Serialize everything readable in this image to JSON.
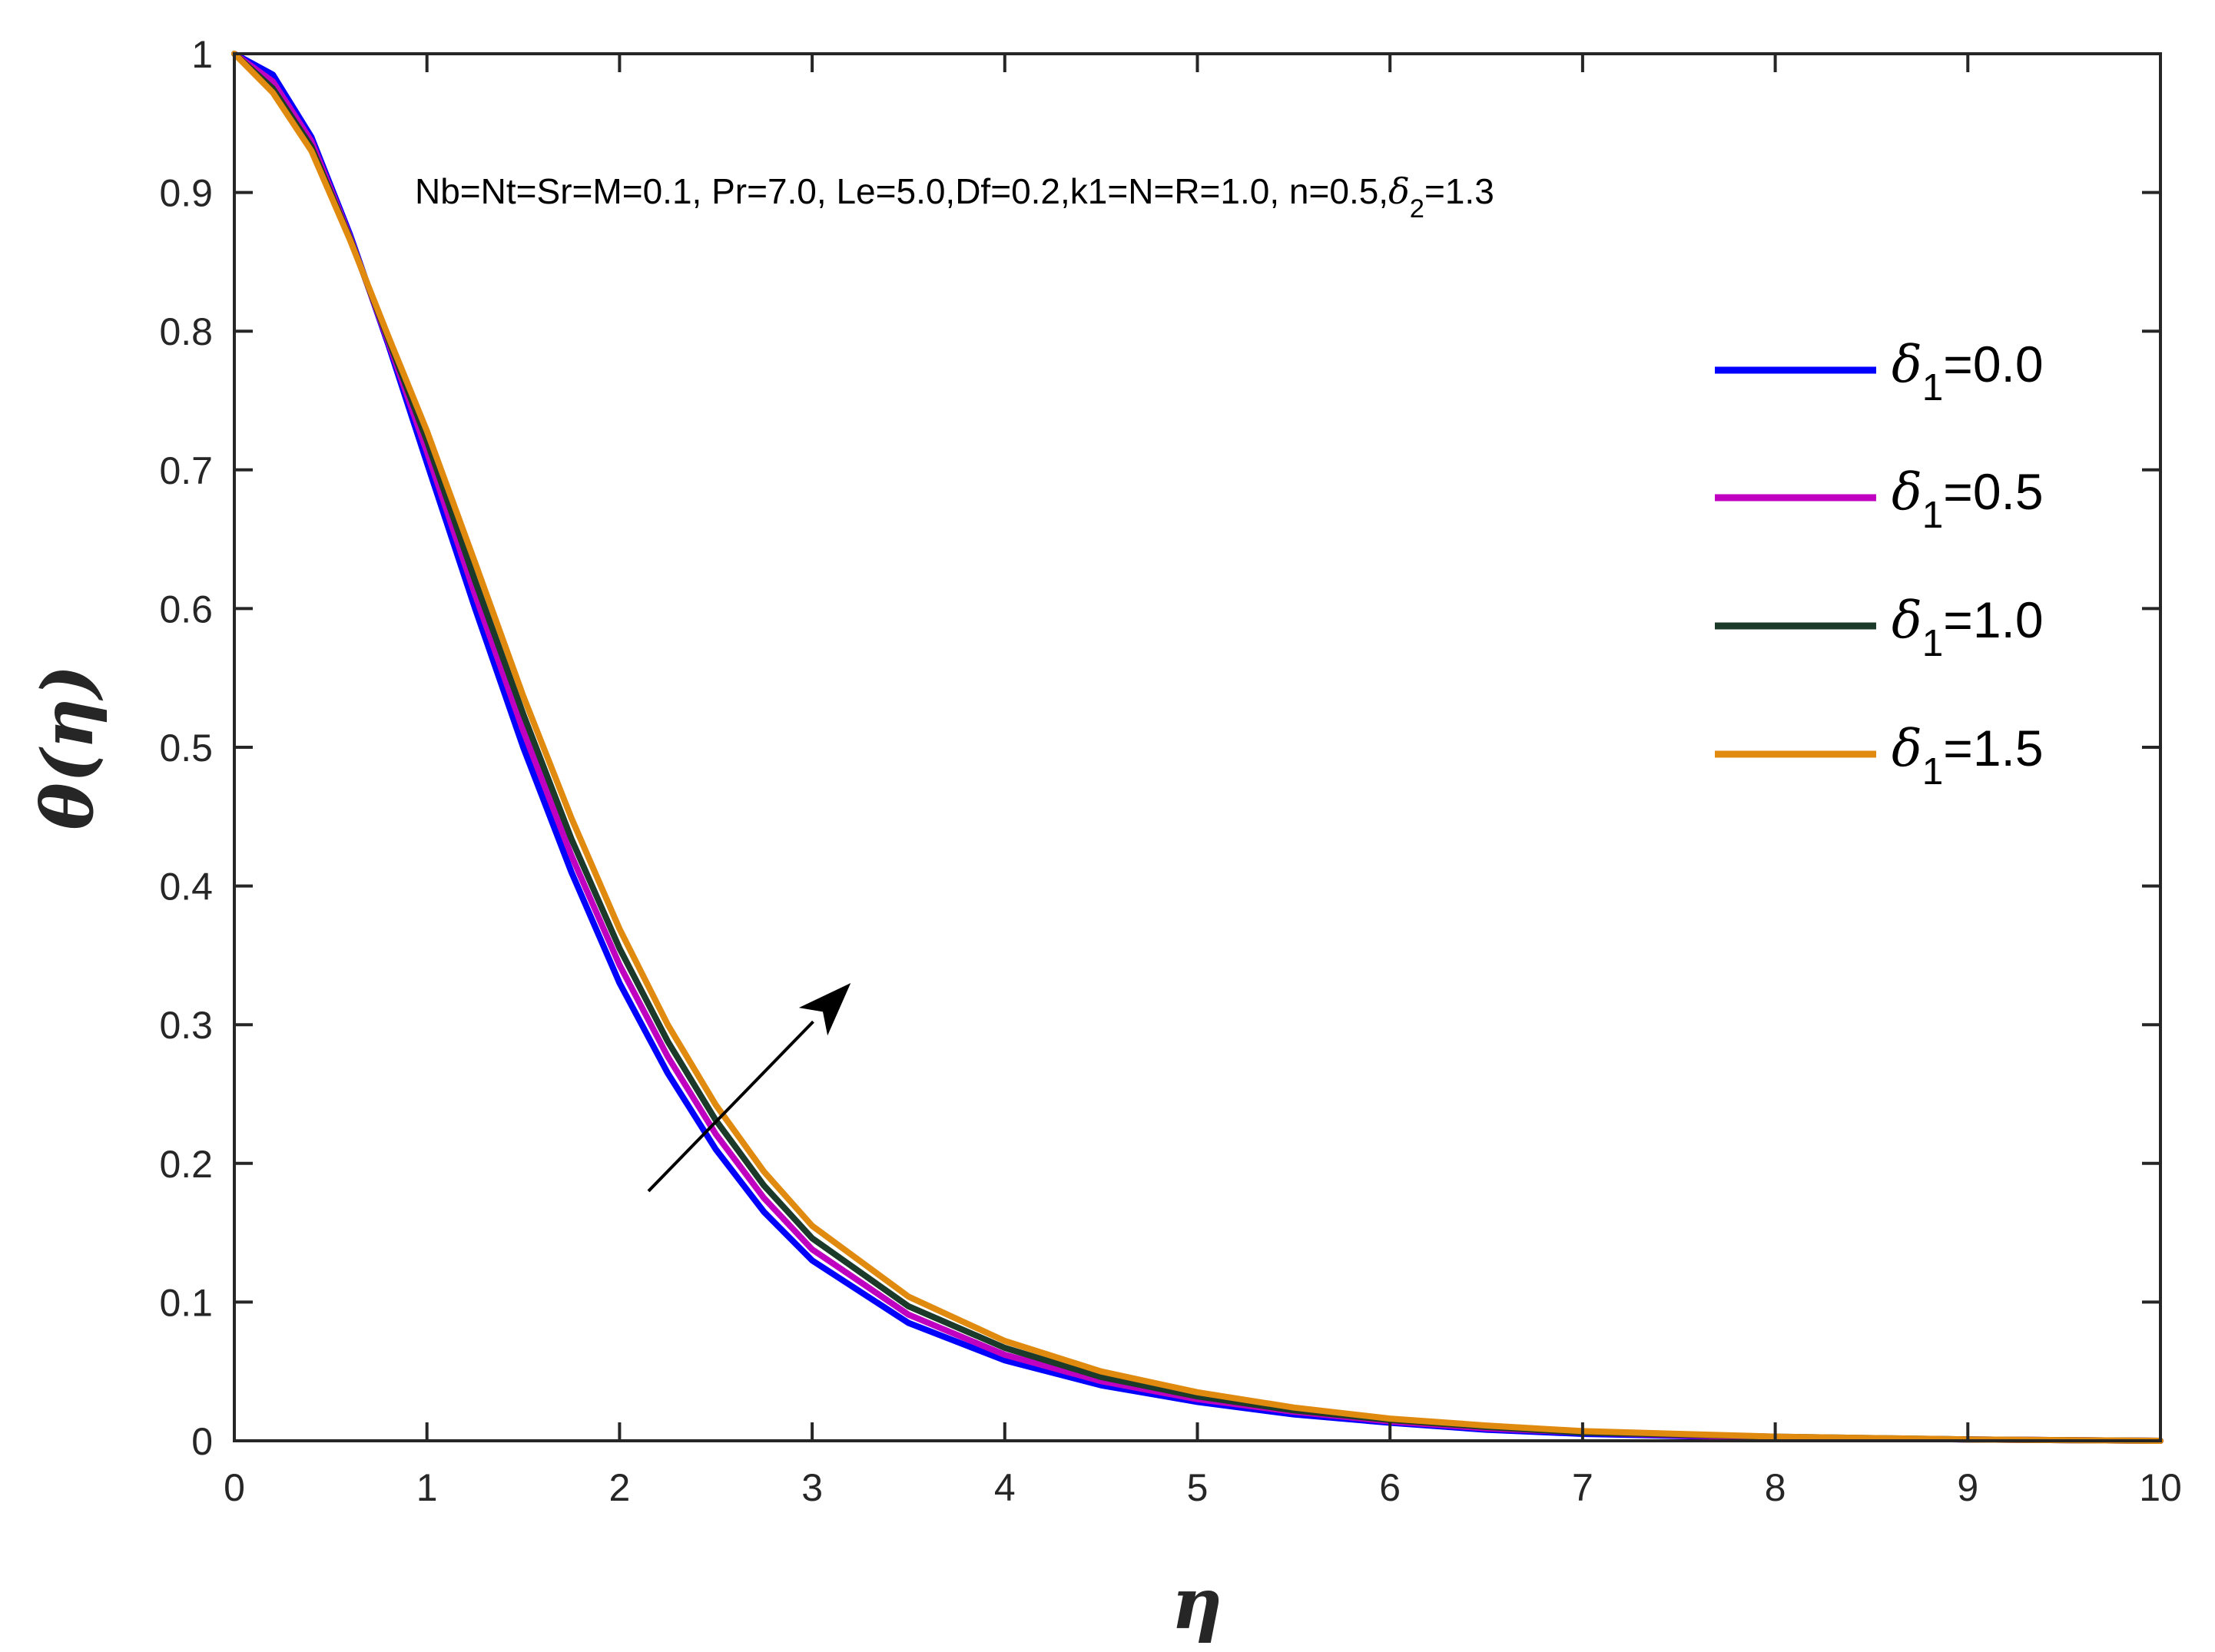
{
  "chart_data": {
    "type": "line",
    "xlabel": "η",
    "ylabel": "θ(η)",
    "xlim": [
      0,
      10
    ],
    "ylim": [
      0,
      1
    ],
    "xticks": [
      0,
      1,
      2,
      3,
      4,
      5,
      6,
      7,
      8,
      9,
      10
    ],
    "yticks": [
      0,
      0.1,
      0.2,
      0.3,
      0.4,
      0.5,
      0.6,
      0.7,
      0.8,
      0.9,
      1
    ],
    "xtick_labels": [
      "0",
      "1",
      "2",
      "3",
      "4",
      "5",
      "6",
      "7",
      "8",
      "9",
      "10"
    ],
    "ytick_labels": [
      "0",
      "0.1",
      "0.2",
      "0.3",
      "0.4",
      "0.5",
      "0.6",
      "0.7",
      "0.8",
      "0.9",
      "1"
    ],
    "grid": false,
    "legend_position": "top-right",
    "annotation": {
      "main": "Nb=Nt=Sr=M=0.1, Pr=7.0, Le=5.0,Df=0.2,k1=N=R=1.0, n=0.5,",
      "symbol": "δ",
      "subscript": "2",
      "suffix": "=1.3"
    },
    "arrow": {
      "from": [
        2.15,
        0.18
      ],
      "to": [
        3.2,
        0.33
      ]
    },
    "x": [
      0,
      0.2,
      0.4,
      0.6,
      0.8,
      1.0,
      1.25,
      1.5,
      1.75,
      2.0,
      2.25,
      2.5,
      2.75,
      3.0,
      3.5,
      4.0,
      4.5,
      5.0,
      5.5,
      6.0,
      6.5,
      7.0,
      8.0,
      9.0,
      10.0
    ],
    "series": [
      {
        "legend_symbol": "δ",
        "legend_subscript": "1",
        "legend_value": "=0.0",
        "color": "#0000ff",
        "values": [
          1.0,
          0.985,
          0.94,
          0.87,
          0.79,
          0.705,
          0.6,
          0.5,
          0.41,
          0.33,
          0.265,
          0.21,
          0.165,
          0.13,
          0.085,
          0.058,
          0.04,
          0.028,
          0.019,
          0.013,
          0.008,
          0.005,
          0.002,
          0.001,
          0.0
        ]
      },
      {
        "legend_symbol": "δ",
        "legend_subscript": "1",
        "legend_value": "=0.5",
        "color": "#c000c0",
        "values": [
          1.0,
          0.98,
          0.937,
          0.868,
          0.792,
          0.713,
          0.61,
          0.512,
          0.422,
          0.343,
          0.277,
          0.221,
          0.175,
          0.138,
          0.091,
          0.062,
          0.043,
          0.03,
          0.021,
          0.014,
          0.009,
          0.006,
          0.002,
          0.001,
          0.0
        ]
      },
      {
        "legend_symbol": "δ",
        "legend_subscript": "1",
        "legend_value": "=1.0",
        "color": "#1b3a2a",
        "values": [
          1.0,
          0.975,
          0.933,
          0.867,
          0.794,
          0.721,
          0.62,
          0.524,
          0.434,
          0.355,
          0.288,
          0.231,
          0.184,
          0.146,
          0.097,
          0.067,
          0.046,
          0.032,
          0.022,
          0.015,
          0.01,
          0.006,
          0.003,
          0.001,
          0.0
        ]
      },
      {
        "legend_symbol": "δ",
        "legend_subscript": "1",
        "legend_value": "=1.5",
        "color": "#e08a10",
        "values": [
          1.0,
          0.972,
          0.93,
          0.866,
          0.796,
          0.728,
          0.633,
          0.537,
          0.449,
          0.369,
          0.3,
          0.242,
          0.194,
          0.155,
          0.104,
          0.072,
          0.05,
          0.035,
          0.024,
          0.016,
          0.011,
          0.007,
          0.003,
          0.001,
          0.0
        ]
      }
    ]
  }
}
